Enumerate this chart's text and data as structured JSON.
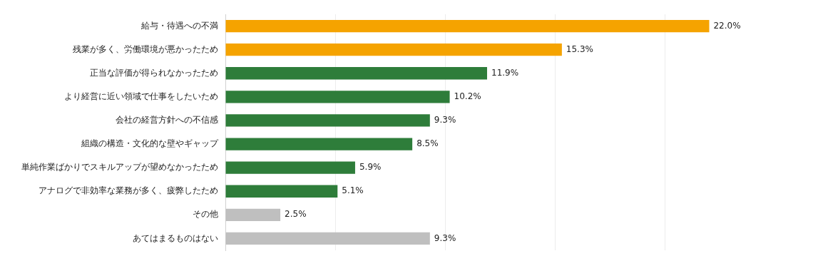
{
  "chart_data": {
    "type": "bar",
    "orientation": "horizontal",
    "categories": [
      "給与・待遇への不満",
      "残業が多く、労働環境が悪かったため",
      "正当な評価が得られなかったため",
      "より経営に近い領域で仕事をしたいため",
      "会社の経営方針への不信感",
      "組織の構造・文化的な壁やギャップ",
      "単純作業ばかりでスキルアップが望めなかったため",
      "アナログで非効率な業務が多く、疲弊したため",
      "その他",
      "あてはまるものはない"
    ],
    "values": [
      22.0,
      15.3,
      11.9,
      10.2,
      9.3,
      8.5,
      5.9,
      5.1,
      2.5,
      9.3
    ],
    "value_labels": [
      "22.0%",
      "15.3%",
      "11.9%",
      "10.2%",
      "9.3%",
      "8.5%",
      "5.9%",
      "5.1%",
      "2.5%",
      "9.3%"
    ],
    "colors": [
      "#f5a300",
      "#f5a300",
      "#2e7d3a",
      "#2e7d3a",
      "#2e7d3a",
      "#2e7d3a",
      "#2e7d3a",
      "#2e7d3a",
      "#bfbfbf",
      "#bfbfbf"
    ],
    "xticks": [
      {
        "value": 0,
        "label": null
      },
      {
        "value": 5,
        "label": null
      },
      {
        "value": 10,
        "label": null
      },
      {
        "value": 15,
        "label": null
      },
      {
        "value": 20,
        "label": null
      }
    ],
    "tick_labels": "y",
    "grid": "x",
    "legend": false
  }
}
